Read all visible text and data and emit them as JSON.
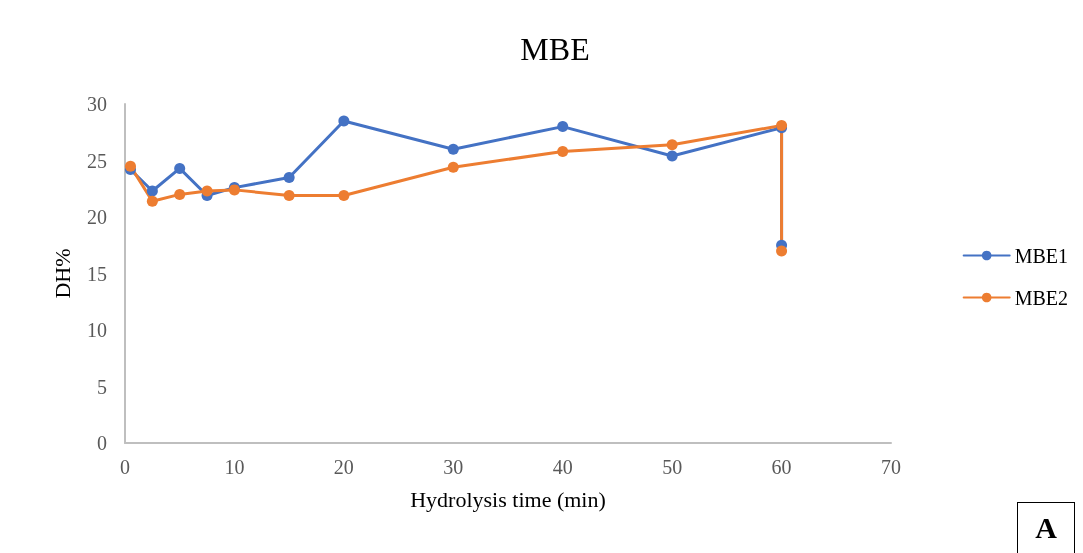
{
  "chart_data": {
    "type": "line",
    "title": "MBE",
    "xlabel": "Hydrolysis time (min)",
    "ylabel": "DH%",
    "annotations": [
      "A"
    ],
    "xlim": [
      0,
      70
    ],
    "xticks": [
      0,
      10,
      20,
      30,
      40,
      50,
      60,
      70
    ],
    "ylim": [
      0,
      30
    ],
    "yticks": [
      0,
      5,
      10,
      15,
      20,
      25,
      30
    ],
    "grid": false,
    "legend": "right",
    "marker": "circle",
    "line_style": "solid",
    "series": [
      {
        "name": "MBE1",
        "color": "#4472c4",
        "x": [
          0.5,
          2.5,
          5,
          7.5,
          10,
          15,
          20,
          30,
          40,
          50,
          60,
          60
        ],
        "values": [
          24.2,
          22.3,
          24.3,
          21.9,
          22.6,
          23.5,
          28.5,
          26.0,
          28.0,
          25.4,
          27.9,
          17.5
        ]
      },
      {
        "name": "MBE2",
        "color": "#ed7d31",
        "x": [
          0.5,
          2.5,
          5,
          7.5,
          10,
          15,
          20,
          30,
          40,
          50,
          60,
          60
        ],
        "values": [
          24.5,
          21.4,
          22.0,
          22.3,
          22.4,
          21.9,
          21.9,
          24.4,
          25.8,
          26.4,
          28.1,
          17.0
        ]
      }
    ]
  }
}
